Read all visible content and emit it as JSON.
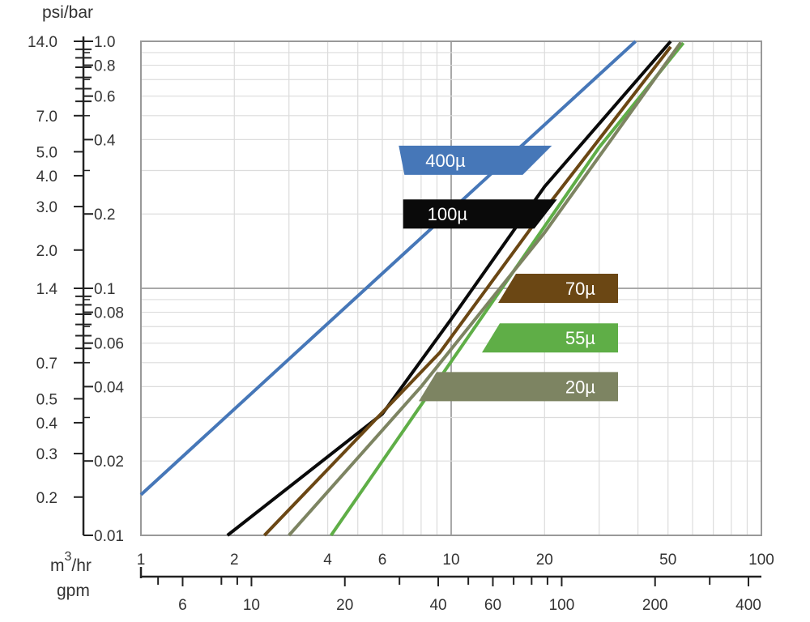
{
  "chart_data": {
    "type": "line",
    "x_scale": "log",
    "y_scale": "log",
    "xlim": [
      1,
      100
    ],
    "ylim": [
      0.01,
      1.0
    ],
    "grid": true,
    "axis_titles": {
      "y_top": "psi/bar",
      "x_primary_prefix": "m",
      "x_primary_superscript": "3",
      "x_primary_suffix": "/hr",
      "x_secondary": "gpm"
    },
    "bar_ticks": [
      {
        "v": 1.0,
        "t": "1.0"
      },
      {
        "v": 0.8,
        "t": "0.8"
      },
      {
        "v": 0.6,
        "t": "0.6"
      },
      {
        "v": 0.4,
        "t": "0.4"
      },
      {
        "v": 0.2,
        "t": "0.2"
      },
      {
        "v": 0.1,
        "t": "0.1"
      },
      {
        "v": 0.08,
        "t": "0.08"
      },
      {
        "v": 0.06,
        "t": "0.06"
      },
      {
        "v": 0.04,
        "t": "0.04"
      },
      {
        "v": 0.02,
        "t": "0.02"
      },
      {
        "v": 0.01,
        "t": "0.01"
      }
    ],
    "psi_ticks": [
      {
        "v": 14.0,
        "t": "14.0"
      },
      {
        "v": 7.0,
        "t": "7.0"
      },
      {
        "v": 5.0,
        "t": "5.0"
      },
      {
        "v": 4.0,
        "t": "4.0"
      },
      {
        "v": 3.0,
        "t": "3.0"
      },
      {
        "v": 2.0,
        "t": "2.0"
      },
      {
        "v": 1.4,
        "t": "1.4"
      },
      {
        "v": 0.7,
        "t": "0.7"
      },
      {
        "v": 0.5,
        "t": "0.5"
      },
      {
        "v": 0.4,
        "t": "0.4"
      },
      {
        "v": 0.3,
        "t": "0.3"
      },
      {
        "v": 0.2,
        "t": "0.2"
      }
    ],
    "psi_minor": [
      13,
      12,
      11,
      10,
      9,
      8,
      1.3,
      1.2,
      1.1,
      1.0,
      0.9,
      0.8
    ],
    "m3_ticks": [
      {
        "v": 1,
        "t": "1"
      },
      {
        "v": 2,
        "t": "2"
      },
      {
        "v": 4,
        "t": "4"
      },
      {
        "v": 6,
        "t": "6"
      },
      {
        "v": 10,
        "t": "10"
      },
      {
        "v": 20,
        "t": "20"
      },
      {
        "v": 50,
        "t": "50"
      },
      {
        "v": 100,
        "t": "100"
      }
    ],
    "gpm_ticks": [
      {
        "v": 6,
        "t": "6"
      },
      {
        "v": 10,
        "t": "10"
      },
      {
        "v": 20,
        "t": "20"
      },
      {
        "v": 40,
        "t": "40"
      },
      {
        "v": 60,
        "t": "60"
      },
      {
        "v": 100,
        "t": "100"
      },
      {
        "v": 200,
        "t": "200"
      },
      {
        "v": 400,
        "t": "400"
      }
    ],
    "gpm_minor": [
      30,
      50,
      70,
      80,
      90,
      300
    ],
    "gpm_range": [
      4.403,
      440.3
    ],
    "series": [
      {
        "name": "400µ",
        "color": "#4677b8",
        "points": [
          [
            1.0,
            0.0146
          ],
          [
            39.3,
            1.0
          ]
        ],
        "label_anchor": [
          6.9,
          0.33
        ]
      },
      {
        "name": "100µ",
        "color": "#0a0a0a",
        "points": [
          [
            1.9,
            0.01
          ],
          [
            6.0,
            0.031
          ],
          [
            10.0,
            0.075
          ],
          [
            20.0,
            0.258
          ],
          [
            51.0,
            1.0
          ]
        ],
        "label_anchor": [
          7.0,
          0.2
        ]
      },
      {
        "name": "70µ",
        "color": "#6b4714",
        "points": [
          [
            2.5,
            0.01
          ],
          [
            9.2,
            0.055
          ],
          [
            20.0,
            0.208
          ],
          [
            51.0,
            0.95
          ]
        ],
        "label_anchor": [
          34.5,
          0.1
        ]
      },
      {
        "name": "55µ",
        "color": "#5fae47",
        "points": [
          [
            4.1,
            0.01
          ],
          [
            30.0,
            0.372
          ],
          [
            56.0,
            0.985
          ]
        ],
        "label_anchor": [
          34.5,
          0.063
        ]
      },
      {
        "name": "20µ",
        "color": "#7d8462",
        "points": [
          [
            3.0,
            0.01
          ],
          [
            8.0,
            0.04
          ],
          [
            20.0,
            0.168
          ],
          [
            55.0,
            0.99
          ]
        ],
        "label_anchor": [
          34.5,
          0.04
        ]
      }
    ]
  }
}
